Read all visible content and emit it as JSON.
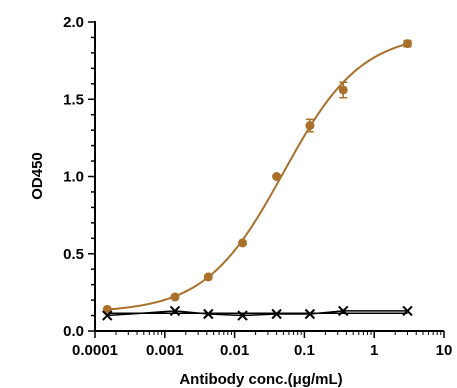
{
  "chart_data": {
    "type": "scatter",
    "title": "",
    "xlabel": "Antibody conc.(μg/mL)",
    "ylabel": "OD450",
    "xscale": "log",
    "xlim": [
      0.0001,
      10
    ],
    "ylim": [
      0.0,
      2.0
    ],
    "x_ticks": [
      0.0001,
      0.001,
      0.01,
      0.1,
      1,
      10
    ],
    "x_tick_labels": [
      "0.0001",
      "0.001",
      "0.01",
      "0.1",
      "1",
      "10"
    ],
    "y_ticks": [
      0.0,
      0.5,
      1.0,
      1.5,
      2.0
    ],
    "y_tick_labels": [
      "0.0",
      "0.5",
      "1.0",
      "1.5",
      "2.0"
    ],
    "grid": false,
    "legend": "none",
    "series": [
      {
        "color": "#A8702A",
        "marker": "circle",
        "fit_curve": "sigmoidal",
        "x": [
          0.00015,
          0.0014,
          0.0042,
          0.013,
          0.04,
          0.12,
          0.36,
          3.0
        ],
        "y": [
          0.14,
          0.22,
          0.35,
          0.57,
          1.0,
          1.33,
          1.56,
          1.86
        ],
        "y_err": [
          0.01,
          0.01,
          0.01,
          0.01,
          0.01,
          0.04,
          0.05,
          0.02
        ]
      },
      {
        "color": "#000000",
        "marker": "x",
        "fit_curve": "line",
        "x": [
          0.00015,
          0.0014,
          0.0042,
          0.013,
          0.04,
          0.12,
          0.36,
          3.0
        ],
        "y": [
          0.1,
          0.13,
          0.11,
          0.1,
          0.11,
          0.11,
          0.13,
          0.13
        ]
      }
    ]
  }
}
